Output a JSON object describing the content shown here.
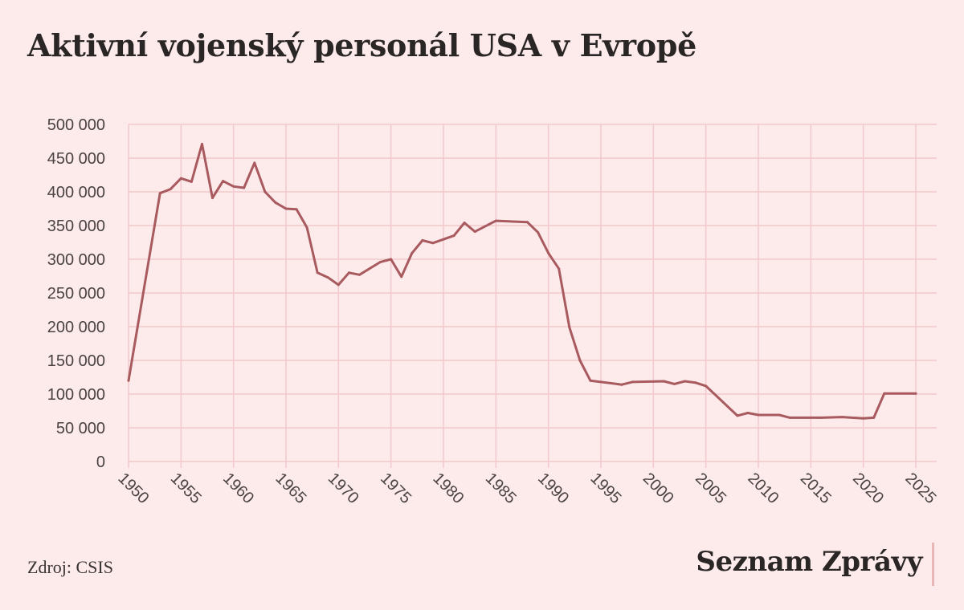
{
  "header": {
    "title": "Aktivní vojenský personál USA v Evropě"
  },
  "footer": {
    "source": "Zdroj: CSIS",
    "logo": "Seznam Zprávy"
  },
  "colors": {
    "background": "#fdebec",
    "line": "#a85a5e",
    "grid": "#f2c9cc",
    "text": "#2b2626"
  },
  "chart_data": {
    "type": "line",
    "title": "Aktivní vojenský personál USA v Evropě",
    "xlabel": "",
    "ylabel": "",
    "xlim": [
      1950,
      2025
    ],
    "ylim": [
      0,
      500000
    ],
    "grid": true,
    "x_ticks": [
      1950,
      1955,
      1960,
      1965,
      1970,
      1975,
      1980,
      1985,
      1990,
      1995,
      2000,
      2005,
      2010,
      2015,
      2020,
      2025
    ],
    "x_tick_labels": [
      "1950",
      "1955",
      "1960",
      "1965",
      "1970",
      "1975",
      "1980",
      "1985",
      "1990",
      "1995",
      "2000",
      "2005",
      "2010",
      "2015",
      "2020",
      "2025"
    ],
    "y_ticks": [
      0,
      50000,
      100000,
      150000,
      200000,
      250000,
      300000,
      350000,
      400000,
      450000,
      500000
    ],
    "y_tick_labels": [
      "0",
      "50 000",
      "100 000",
      "150 000",
      "200 000",
      "250 000",
      "300 000",
      "350 000",
      "400 000",
      "450 000",
      "500 000"
    ],
    "series": [
      {
        "points": [
          [
            1950,
            120000
          ],
          [
            1953,
            398000
          ],
          [
            1954,
            404000
          ],
          [
            1955,
            420000
          ],
          [
            1956,
            415000
          ],
          [
            1957,
            471000
          ],
          [
            1958,
            391000
          ],
          [
            1959,
            416000
          ],
          [
            1960,
            408000
          ],
          [
            1961,
            406000
          ],
          [
            1962,
            443000
          ],
          [
            1963,
            400000
          ],
          [
            1964,
            384000
          ],
          [
            1965,
            375000
          ],
          [
            1966,
            374000
          ],
          [
            1967,
            347000
          ],
          [
            1968,
            280000
          ],
          [
            1969,
            273000
          ],
          [
            1970,
            262000
          ],
          [
            1971,
            280000
          ],
          [
            1972,
            277000
          ],
          [
            1974,
            296000
          ],
          [
            1975,
            300000
          ],
          [
            1976,
            274000
          ],
          [
            1977,
            309000
          ],
          [
            1978,
            328000
          ],
          [
            1979,
            324000
          ],
          [
            1981,
            335000
          ],
          [
            1982,
            354000
          ],
          [
            1983,
            341000
          ],
          [
            1985,
            357000
          ],
          [
            1988,
            355000
          ],
          [
            1989,
            340000
          ],
          [
            1990,
            309000
          ],
          [
            1991,
            286000
          ],
          [
            1992,
            199000
          ],
          [
            1993,
            150000
          ],
          [
            1994,
            120000
          ],
          [
            1997,
            114000
          ],
          [
            1998,
            118000
          ],
          [
            2001,
            119000
          ],
          [
            2002,
            115000
          ],
          [
            2003,
            119000
          ],
          [
            2004,
            117000
          ],
          [
            2005,
            112000
          ],
          [
            2008,
            68000
          ],
          [
            2009,
            72000
          ],
          [
            2010,
            69000
          ],
          [
            2012,
            69000
          ],
          [
            2013,
            65000
          ],
          [
            2016,
            65000
          ],
          [
            2018,
            66000
          ],
          [
            2020,
            64000
          ],
          [
            2021,
            65000
          ],
          [
            2022,
            101000
          ],
          [
            2025,
            101000
          ]
        ]
      }
    ]
  }
}
